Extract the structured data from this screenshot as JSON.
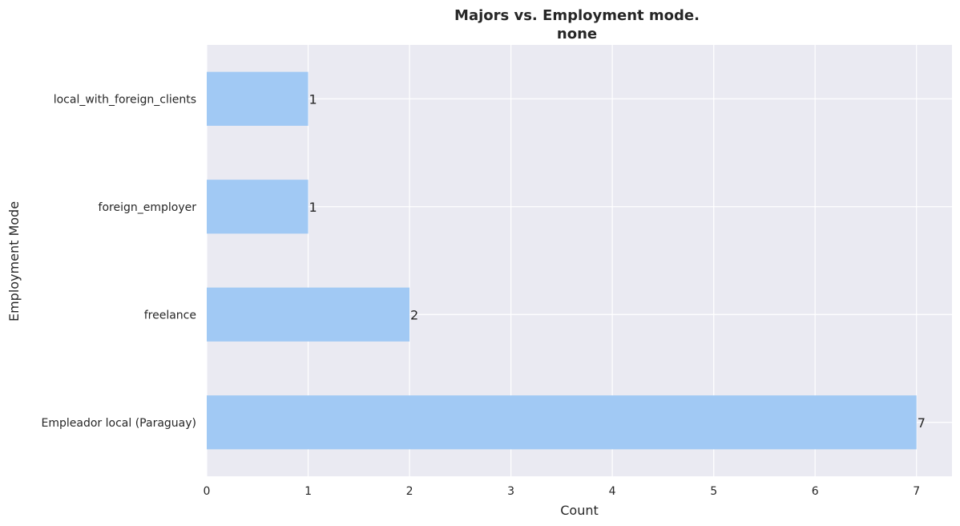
{
  "chart_data": {
    "type": "bar",
    "orientation": "horizontal",
    "title": "Majors vs. Employment mode.",
    "subtitle": "none",
    "xlabel": "Count",
    "ylabel": "Employment Mode",
    "categories": [
      "Empleador local (Paraguay)",
      "freelance",
      "foreign_employer",
      "local_with_foreign_clients"
    ],
    "values": [
      7,
      2,
      1,
      1
    ],
    "data_labels": [
      "7",
      "2",
      "1",
      "1"
    ],
    "xlim": [
      0,
      7.35
    ],
    "xticks": [
      0,
      1,
      2,
      3,
      4,
      5,
      6,
      7
    ],
    "xtick_labels": [
      "0",
      "1",
      "2",
      "3",
      "4",
      "5",
      "6",
      "7"
    ],
    "grid": true,
    "colors": {
      "bar": "#a1c9f4",
      "plot_background": "#eaeaf2",
      "grid": "#ffffff",
      "text": "#262626"
    }
  }
}
